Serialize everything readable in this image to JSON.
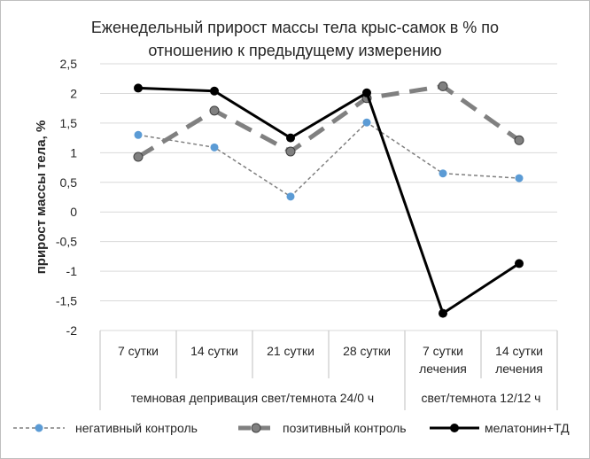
{
  "chart_data": {
    "type": "line",
    "title_lines": [
      "Еженедельный прирост массы тела крыс-самок в % по",
      "отношению к предыдущему измерению"
    ],
    "ylabel": "прирост массы тела, %",
    "ylim": [
      -2,
      2.5
    ],
    "yticks": [
      2.5,
      2,
      1.5,
      1,
      0.5,
      0,
      -0.5,
      -1,
      -1.5,
      -2
    ],
    "ytick_labels": [
      "2,5",
      "2",
      "1,5",
      "1",
      "0,5",
      "0",
      "-0,5",
      "-1",
      "-1,5",
      "-2"
    ],
    "grid": true,
    "legend_position": "bottom",
    "categories": [
      [
        "7 сутки"
      ],
      [
        "14 сутки"
      ],
      [
        "21 сутки"
      ],
      [
        "28 сутки"
      ],
      [
        "7 сутки",
        "лечения"
      ],
      [
        "14 сутки",
        "лечения"
      ]
    ],
    "groups": [
      {
        "label": "темновая депривация свет/темнота 24/0 ч",
        "from": 0,
        "to": 3
      },
      {
        "label": "свет/темнота 12/12 ч",
        "from": 4,
        "to": 5
      }
    ],
    "series": [
      {
        "name": "негативный контроль",
        "values": [
          1.3,
          1.09,
          0.26,
          1.51,
          0.65,
          0.57
        ],
        "line_color": "#7f7f7f",
        "marker_color": "#5b9bd5",
        "style": "dashed-thin"
      },
      {
        "name": "позитивный контроль",
        "values": [
          0.93,
          1.71,
          1.02,
          1.92,
          2.12,
          1.21
        ],
        "line_color": "#808080",
        "marker_color": "#808080",
        "style": "dashed-thick"
      },
      {
        "name": "мелатонин+ТД",
        "values": [
          2.09,
          2.04,
          1.25,
          2.01,
          -1.71,
          -0.87
        ],
        "line_color": "#000000",
        "marker_color": "#000000",
        "style": "solid"
      }
    ]
  }
}
